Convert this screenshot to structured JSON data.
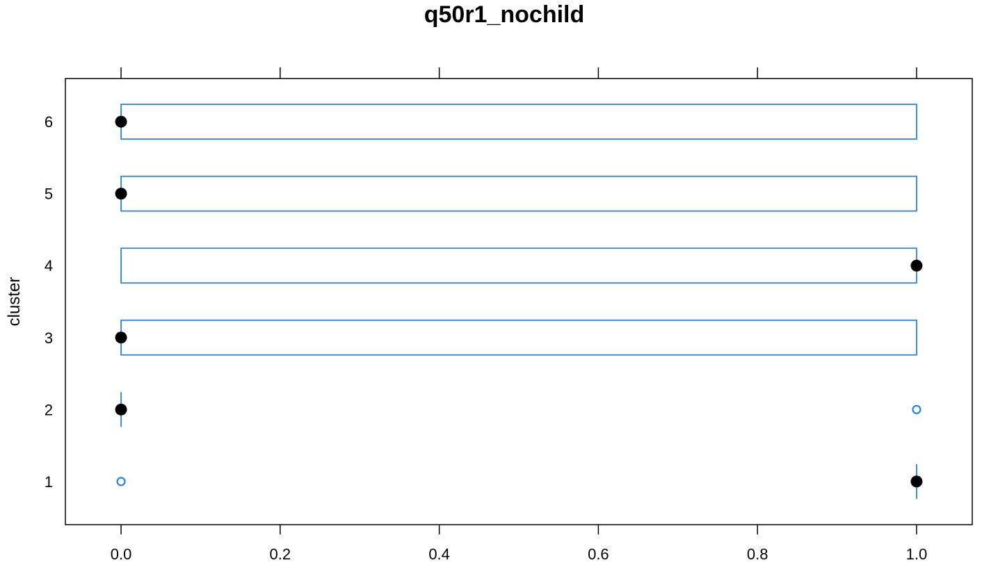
{
  "chart_data": {
    "type": "box",
    "orientation": "horizontal",
    "title": "q50r1_nochild",
    "xlabel": "",
    "ylabel": "cluster",
    "xlim": [
      -0.07,
      1.07
    ],
    "ylim": [
      0.4,
      6.6
    ],
    "x_ticks": [
      "0.0",
      "0.2",
      "0.4",
      "0.6",
      "0.8",
      "1.0"
    ],
    "y_ticks": [
      "1",
      "2",
      "3",
      "4",
      "5",
      "6"
    ],
    "top_axis_ticks": true,
    "grid": false,
    "box_color": "#2b83e0",
    "median_color": "#000000",
    "series": [
      {
        "cluster": "1",
        "q1": 1,
        "median": 1,
        "q3": 1,
        "outliers": [
          0
        ]
      },
      {
        "cluster": "2",
        "q1": 0,
        "median": 0,
        "q3": 0,
        "outliers": [
          1
        ]
      },
      {
        "cluster": "3",
        "q1": 0,
        "median": 0,
        "q3": 1,
        "outliers": []
      },
      {
        "cluster": "4",
        "q1": 0,
        "median": 1,
        "q3": 1,
        "outliers": []
      },
      {
        "cluster": "5",
        "q1": 0,
        "median": 0,
        "q3": 1,
        "outliers": []
      },
      {
        "cluster": "6",
        "q1": 0,
        "median": 0,
        "q3": 1,
        "outliers": []
      }
    ]
  }
}
